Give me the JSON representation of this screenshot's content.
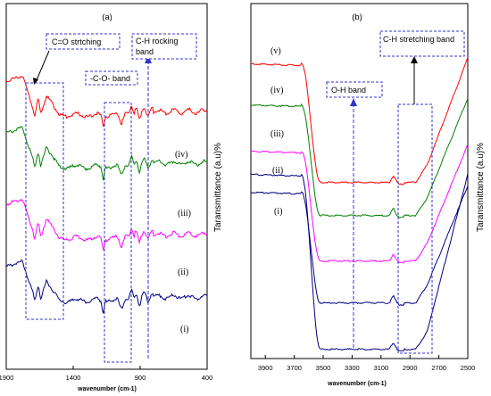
{
  "chart_data": [
    {
      "type": "line",
      "panel_label": "(a)",
      "xlabel": "wavenumber (cm-1)",
      "ylabel": "Taransmittance (a.u)%",
      "xlim": [
        1900,
        400
      ],
      "x_ticks": [
        1900,
        1400,
        900,
        400
      ],
      "grid": false,
      "legend": "none",
      "series_labels": [
        "(iv)",
        "(iii)",
        "(ii)",
        "(i)"
      ],
      "series_colors": [
        "#ff0000",
        "#008000",
        "#ff00ff",
        "#000080"
      ],
      "annotations": {
        "co_stretching": "C=O strtching",
        "c_o_band": "-C-O- band",
        "ch_rocking_line1": "C-H rocking",
        "ch_rocking_line2": "band"
      }
    },
    {
      "type": "line",
      "panel_label": "(b)",
      "xlabel": "wavenumber (cm-1)",
      "ylabel": "Taransmittance (a.u)%",
      "xlim": [
        4000,
        2500
      ],
      "x_ticks": [
        3900,
        3700,
        3500,
        3300,
        3100,
        2900,
        2700,
        2500
      ],
      "grid": false,
      "legend": "none",
      "series_labels": [
        "(v)",
        "(iv)",
        "(iii)",
        "(ii)",
        "(i)"
      ],
      "series_colors": [
        "#ff0000",
        "#008000",
        "#ff00ff",
        "#000080",
        "#000080"
      ],
      "annotations": {
        "oh_band": "O-H band",
        "ch_stretching": "C-H stretching band"
      }
    }
  ]
}
